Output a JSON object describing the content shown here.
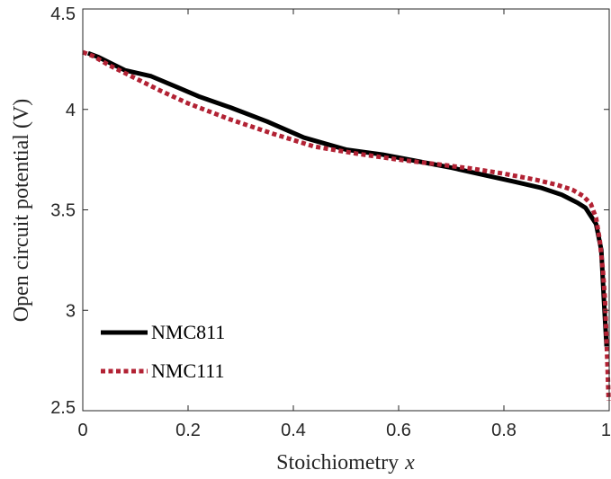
{
  "chart_data": {
    "type": "line",
    "title": "",
    "xlabel": "Stoichiometry",
    "xlabel_var": "x",
    "ylabel": "Open circuit potential (V)",
    "xlim": [
      0,
      1
    ],
    "ylim": [
      2.5,
      4.5
    ],
    "xticks": [
      0,
      0.2,
      0.4,
      0.6,
      0.8,
      1
    ],
    "xtick_labels": [
      "0",
      "0.2",
      "0.4",
      "0.6",
      "0.8",
      "1"
    ],
    "yticks": [
      2.5,
      3,
      3.5,
      4,
      4.5
    ],
    "ytick_labels": [
      "2.5",
      "3",
      "3.5",
      "4",
      "4.5"
    ],
    "grid": false,
    "legend_position": "bottom-left",
    "series": [
      {
        "name": "NMC811",
        "color": "#000000",
        "style": "solid",
        "x": [
          0.01,
          0.03,
          0.08,
          0.13,
          0.18,
          0.22,
          0.28,
          0.35,
          0.42,
          0.5,
          0.57,
          0.63,
          0.7,
          0.76,
          0.82,
          0.87,
          0.91,
          0.94,
          0.955,
          0.965,
          0.975,
          0.985,
          0.99,
          0.995
        ],
        "y": [
          4.28,
          4.26,
          4.195,
          4.165,
          4.11,
          4.065,
          4.01,
          3.94,
          3.86,
          3.8,
          3.775,
          3.745,
          3.71,
          3.675,
          3.64,
          3.61,
          3.575,
          3.535,
          3.51,
          3.47,
          3.43,
          3.3,
          3.05,
          2.82
        ]
      },
      {
        "name": "NMC111",
        "color": "#b22234",
        "style": "dotted",
        "x": [
          0,
          0.02,
          0.05,
          0.1,
          0.15,
          0.2,
          0.28,
          0.36,
          0.44,
          0.52,
          0.6,
          0.68,
          0.74,
          0.8,
          0.86,
          0.9,
          0.93,
          0.95,
          0.965,
          0.975,
          0.982,
          0.988,
          0.992,
          0.995,
          0.997,
          0.999
        ],
        "y": [
          4.285,
          4.265,
          4.22,
          4.155,
          4.09,
          4.03,
          3.95,
          3.88,
          3.815,
          3.78,
          3.75,
          3.725,
          3.705,
          3.68,
          3.65,
          3.625,
          3.6,
          3.57,
          3.53,
          3.46,
          3.35,
          3.2,
          3.05,
          2.85,
          2.7,
          2.55
        ]
      }
    ]
  }
}
